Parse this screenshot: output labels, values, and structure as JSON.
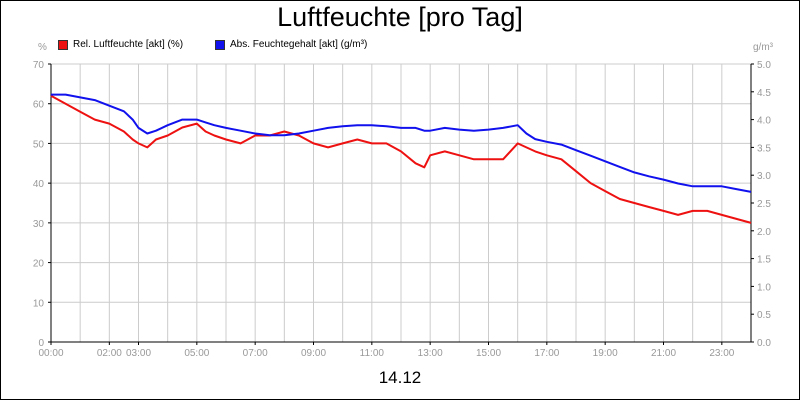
{
  "chart_data": {
    "type": "line",
    "title": "Luftfeuchte [pro Tag]",
    "date": "14.12",
    "y_left": {
      "unit": "%",
      "min": 0,
      "max": 70,
      "ticks": [
        "0",
        "10",
        "20",
        "30",
        "40",
        "50",
        "60",
        "70"
      ]
    },
    "y_right": {
      "unit": "g/m³",
      "min": 0,
      "max": 5.0,
      "ticks": [
        "0.0",
        "0.5",
        "1.0",
        "1.5",
        "2.0",
        "2.5",
        "3.0",
        "3.5",
        "4.0",
        "4.5",
        "5.0"
      ]
    },
    "x_range": [
      0,
      24
    ],
    "x_ticks": [
      {
        "label": "00:00",
        "h": 0
      },
      {
        "label": "02:00",
        "h": 2
      },
      {
        "label": "03:00",
        "h": 3
      },
      {
        "label": "05:00",
        "h": 5
      },
      {
        "label": "07:00",
        "h": 7
      },
      {
        "label": "09:00",
        "h": 9
      },
      {
        "label": "11:00",
        "h": 11
      },
      {
        "label": "13:00",
        "h": 13
      },
      {
        "label": "15:00",
        "h": 15
      },
      {
        "label": "17:00",
        "h": 17
      },
      {
        "label": "19:00",
        "h": 19
      },
      {
        "label": "21:00",
        "h": 21
      },
      {
        "label": "23:00",
        "h": 23
      }
    ],
    "grid": true,
    "legend_position": "top-left",
    "series": [
      {
        "name": "Rel. Luftfeuchte [akt] (%)",
        "axis": "left",
        "color": "#ee1111",
        "x": [
          0,
          0.5,
          1,
          1.5,
          2,
          2.5,
          2.8,
          3.0,
          3.3,
          3.6,
          4,
          4.5,
          5,
          5.3,
          5.6,
          6,
          6.5,
          7,
          7.5,
          8,
          8.5,
          9,
          9.5,
          10,
          10.5,
          11,
          11.5,
          12,
          12.5,
          12.8,
          13,
          13.5,
          14,
          14.5,
          15,
          15.5,
          16,
          16.3,
          16.6,
          17,
          17.5,
          18,
          18.5,
          19,
          19.5,
          20,
          20.5,
          21,
          21.5,
          22,
          22.5,
          23,
          23.5,
          24
        ],
        "y": [
          62,
          60,
          58,
          56,
          55,
          53,
          51,
          50,
          49,
          51,
          52,
          54,
          55,
          53,
          52,
          51,
          50,
          52,
          52,
          53,
          52,
          50,
          49,
          50,
          51,
          50,
          50,
          48,
          45,
          44,
          47,
          48,
          47,
          46,
          46,
          46,
          50,
          49,
          48,
          47,
          46,
          43,
          40,
          38,
          36,
          35,
          34,
          33,
          32,
          33,
          33,
          32,
          31,
          30
        ]
      },
      {
        "name": "Abs. Feuchtegehalt [akt] (g/m³)",
        "axis": "right",
        "color": "#1111ee",
        "x": [
          0,
          0.5,
          1,
          1.5,
          2,
          2.5,
          2.8,
          3.0,
          3.3,
          3.6,
          4,
          4.5,
          5,
          5.3,
          5.6,
          6,
          6.5,
          7,
          7.5,
          8,
          8.5,
          9,
          9.5,
          10,
          10.5,
          11,
          11.5,
          12,
          12.5,
          12.8,
          13,
          13.5,
          14,
          14.5,
          15,
          15.5,
          16,
          16.3,
          16.6,
          17,
          17.5,
          18,
          18.5,
          19,
          19.5,
          20,
          20.5,
          21,
          21.5,
          22,
          22.5,
          23,
          23.5,
          24
        ],
        "y": [
          4.45,
          4.45,
          4.4,
          4.35,
          4.25,
          4.15,
          4.0,
          3.85,
          3.75,
          3.8,
          3.9,
          4.0,
          4.0,
          3.95,
          3.9,
          3.85,
          3.8,
          3.75,
          3.72,
          3.72,
          3.75,
          3.8,
          3.85,
          3.88,
          3.9,
          3.9,
          3.88,
          3.85,
          3.85,
          3.8,
          3.8,
          3.85,
          3.82,
          3.8,
          3.82,
          3.85,
          3.9,
          3.75,
          3.65,
          3.6,
          3.55,
          3.45,
          3.35,
          3.25,
          3.15,
          3.05,
          2.98,
          2.92,
          2.85,
          2.8,
          2.8,
          2.8,
          2.75,
          2.7
        ]
      }
    ]
  }
}
